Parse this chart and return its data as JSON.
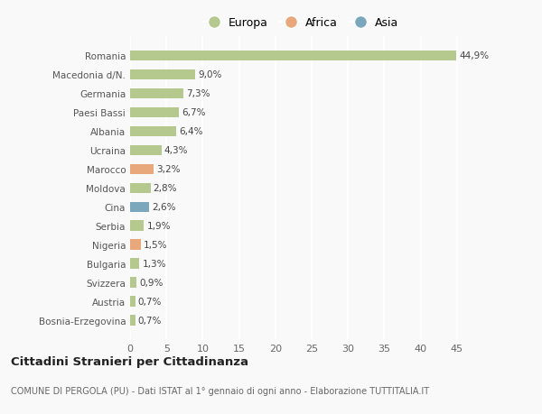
{
  "countries": [
    "Romania",
    "Macedonia d/N.",
    "Germania",
    "Paesi Bassi",
    "Albania",
    "Ucraina",
    "Marocco",
    "Moldova",
    "Cina",
    "Serbia",
    "Nigeria",
    "Bulgaria",
    "Svizzera",
    "Austria",
    "Bosnia-Erzegovina"
  ],
  "values": [
    44.9,
    9.0,
    7.3,
    6.7,
    6.4,
    4.3,
    3.2,
    2.8,
    2.6,
    1.9,
    1.5,
    1.3,
    0.9,
    0.7,
    0.7
  ],
  "labels": [
    "44,9%",
    "9,0%",
    "7,3%",
    "6,7%",
    "6,4%",
    "4,3%",
    "3,2%",
    "2,8%",
    "2,6%",
    "1,9%",
    "1,5%",
    "1,3%",
    "0,9%",
    "0,7%",
    "0,7%"
  ],
  "continents": [
    "Europa",
    "Europa",
    "Europa",
    "Europa",
    "Europa",
    "Europa",
    "Africa",
    "Europa",
    "Asia",
    "Europa",
    "Africa",
    "Europa",
    "Europa",
    "Europa",
    "Europa"
  ],
  "colors": {
    "Europa": "#b5c98e",
    "Africa": "#e8a87c",
    "Asia": "#7ba7bc"
  },
  "title": "Cittadini Stranieri per Cittadinanza",
  "subtitle": "COMUNE DI PERGOLA (PU) - Dati ISTAT al 1° gennaio di ogni anno - Elaborazione TUTTITALIA.IT",
  "xlim": [
    0,
    47
  ],
  "xticks": [
    0,
    5,
    10,
    15,
    20,
    25,
    30,
    35,
    40,
    45
  ],
  "background_color": "#f9f9f9",
  "grid_color": "#ffffff",
  "bar_height": 0.55
}
